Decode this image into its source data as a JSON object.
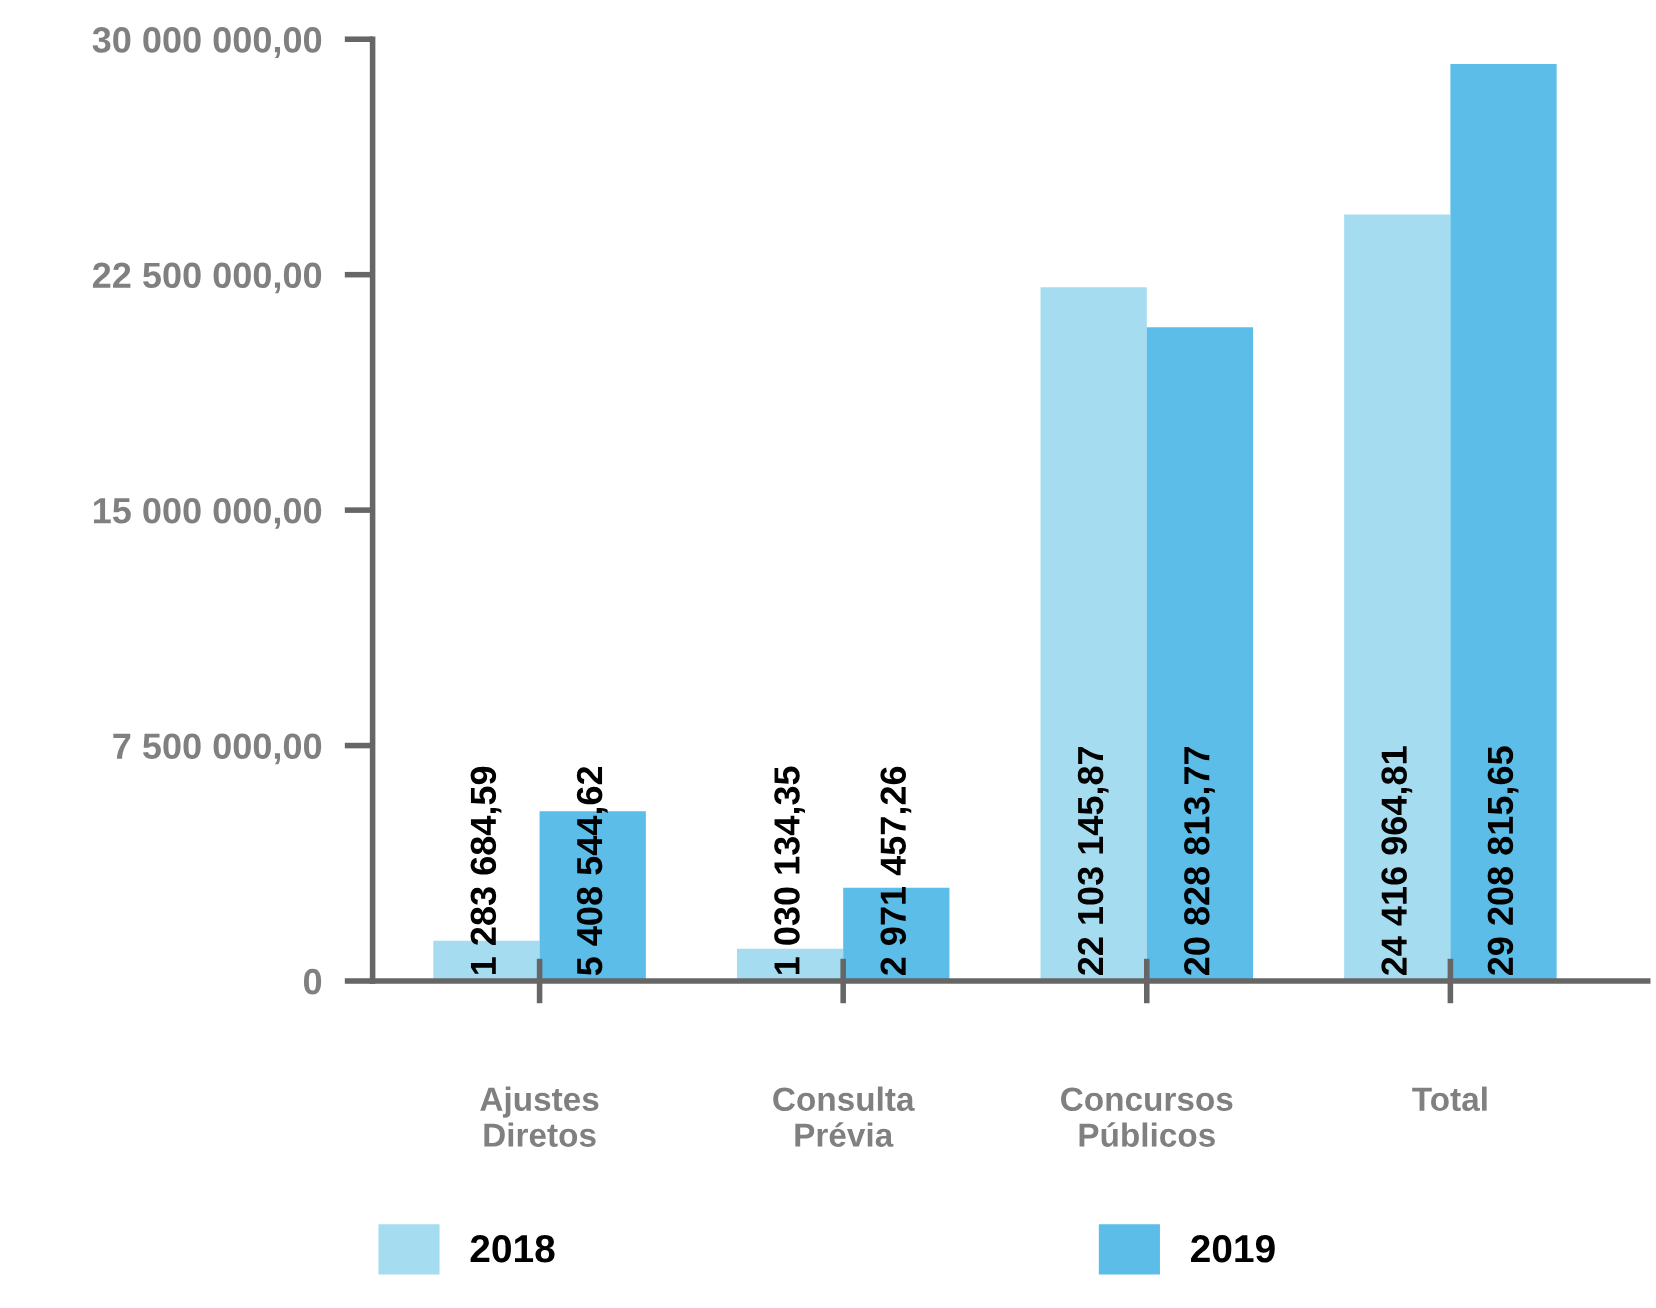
{
  "chart_data": {
    "type": "bar",
    "categories": [
      "Ajustes\nDiretos",
      "Consulta\nPrévia",
      "Concursos\nPúblicos",
      "Total"
    ],
    "series": [
      {
        "name": "2018",
        "color": "#a6dcf0",
        "values": [
          1283684.59,
          1030134.35,
          22103145.87,
          24416964.81
        ],
        "value_labels": [
          "1 283 684,59",
          "1 030 134,35",
          "22 103 145,87",
          "24 416 964,81"
        ]
      },
      {
        "name": "2019",
        "color": "#5bbde8",
        "values": [
          5408544.62,
          2971457.26,
          20828813.77,
          29208815.65
        ],
        "value_labels": [
          "5 408 544,62",
          "2 971 457,26",
          "20 828 813,77",
          "29 208 815,65"
        ]
      }
    ],
    "ylim": [
      0,
      30000000
    ],
    "yticks": [
      {
        "value": 0,
        "label": "0"
      },
      {
        "value": 7500000,
        "label": "7 500 000,00"
      },
      {
        "value": 15000000,
        "label": "15 000 000,00"
      },
      {
        "value": 22500000,
        "label": "22 500 000,00"
      },
      {
        "value": 30000000,
        "label": "30 000 000,00"
      }
    ],
    "grid": false,
    "legend": "bottom"
  }
}
